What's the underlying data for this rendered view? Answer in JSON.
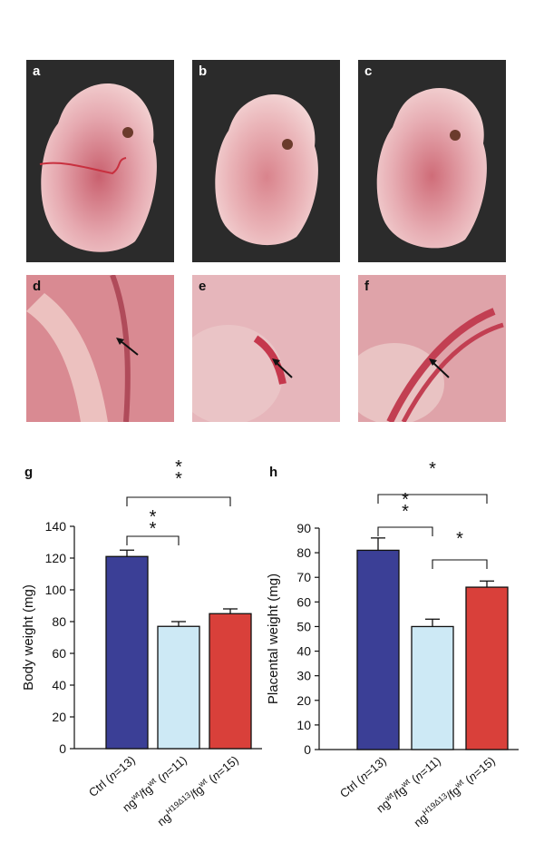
{
  "photo_panels": {
    "a": {
      "label": "a"
    },
    "b": {
      "label": "b"
    },
    "c": {
      "label": "c"
    },
    "d": {
      "label": "d"
    },
    "e": {
      "label": "e"
    },
    "f": {
      "label": "f"
    }
  },
  "chart_data": [
    {
      "panel": "g",
      "type": "bar",
      "categories": [
        "Ctrl (n=13)",
        "ngwt/fgwt (n=11)",
        "ngH19Δ13/fgwt (n=15)"
      ],
      "category_parts": [
        {
          "main": "Ctrl (",
          "italic": "n",
          "rest": "=13)"
        },
        {
          "main": "ng",
          "sup1": "wt",
          "mid": "/fg",
          "sup2": "wt",
          "tail": " (",
          "italic": "n",
          "rest": "=11)"
        },
        {
          "main": "ng",
          "sup1": "H19Δ13",
          "mid": "/fg",
          "sup2": "wt",
          "tail": " (",
          "italic": "n",
          "rest": "=15)"
        }
      ],
      "values": [
        121,
        77,
        85
      ],
      "errors": [
        4,
        3,
        3
      ],
      "colors": [
        "#3b3f96",
        "#cde9f5",
        "#d9403a"
      ],
      "ylabel": "Body weight (mg)",
      "ylim": [
        0,
        140
      ],
      "yticks": [
        0,
        20,
        40,
        60,
        80,
        100,
        120,
        140
      ],
      "significance": [
        {
          "from": 0,
          "to": 2,
          "label": "* *"
        },
        {
          "from": 0,
          "to": 1,
          "label": "* *"
        }
      ]
    },
    {
      "panel": "h",
      "type": "bar",
      "categories": [
        "Ctrl (n=13)",
        "ngwt/fgwt (n=11)",
        "ngH19Δ13/fgwt (n=15)"
      ],
      "category_parts": [
        {
          "main": "Ctrl (",
          "italic": "n",
          "rest": "=13)"
        },
        {
          "main": "ng",
          "sup1": "wt",
          "mid": "/fg",
          "sup2": "wt",
          "tail": " (",
          "italic": "n",
          "rest": "=11)"
        },
        {
          "main": "ng",
          "sup1": "H19Δ13",
          "mid": "/fg",
          "sup2": "wt",
          "tail": " (",
          "italic": "n",
          "rest": "=15)"
        }
      ],
      "values": [
        81,
        50,
        66
      ],
      "errors": [
        5,
        3,
        2.5
      ],
      "colors": [
        "#3b3f96",
        "#cde9f5",
        "#d9403a"
      ],
      "ylabel": "Placental weight (mg)",
      "ylim": [
        0,
        90
      ],
      "yticks": [
        0,
        10,
        20,
        30,
        40,
        50,
        60,
        70,
        80,
        90
      ],
      "significance": [
        {
          "from": 0,
          "to": 2,
          "label": "*"
        },
        {
          "from": 0,
          "to": 1,
          "label": "* *"
        },
        {
          "from": 1,
          "to": 2,
          "label": "*"
        }
      ]
    }
  ]
}
